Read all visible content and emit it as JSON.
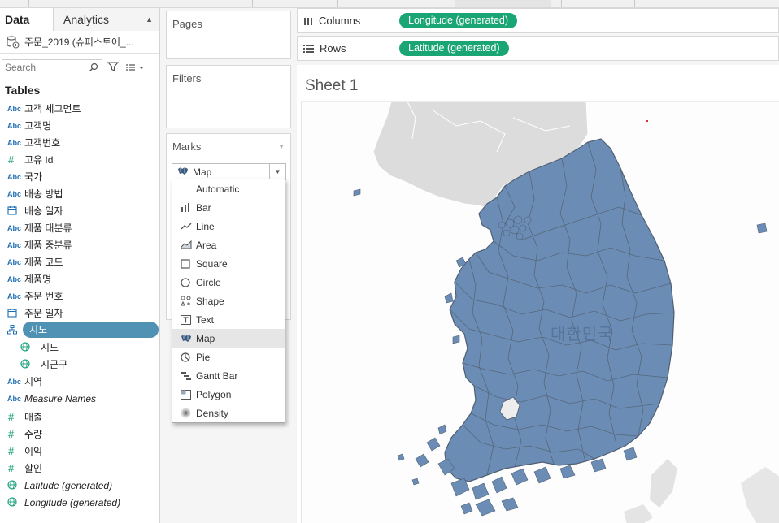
{
  "data_pane": {
    "tab_data": "Data",
    "tab_analytics": "Analytics",
    "datasource_name": "주문_2019 (슈퍼스토어_...",
    "search_placeholder": "Search",
    "tables_header": "Tables",
    "fields": [
      {
        "type": "abc",
        "label": "고객 세그먼트"
      },
      {
        "type": "abc",
        "label": "고객명"
      },
      {
        "type": "abc",
        "label": "고객번호"
      },
      {
        "type": "hash",
        "label": "고유 Id"
      },
      {
        "type": "abc",
        "label": "국가"
      },
      {
        "type": "abc",
        "label": "배송 방법"
      },
      {
        "type": "calendar",
        "label": "배송 일자"
      },
      {
        "type": "abc",
        "label": "제품 대분류"
      },
      {
        "type": "abc",
        "label": "제품 중분류"
      },
      {
        "type": "abc",
        "label": "제품 코드"
      },
      {
        "type": "abc",
        "label": "제품명"
      },
      {
        "type": "abc",
        "label": "주문 번호"
      },
      {
        "type": "calendar",
        "label": "주문 일자"
      },
      {
        "type": "hierarchy",
        "label": "지도"
      },
      {
        "type": "geo",
        "label": "시도"
      },
      {
        "type": "geo",
        "label": "시군구"
      },
      {
        "type": "abc",
        "label": "지역"
      },
      {
        "type": "abc",
        "label": "Measure Names"
      }
    ],
    "measures": [
      {
        "type": "hash",
        "label": "매출"
      },
      {
        "type": "hash",
        "label": "수량"
      },
      {
        "type": "hash",
        "label": "이익"
      },
      {
        "type": "hash",
        "label": "할인"
      },
      {
        "type": "geo",
        "label": "Latitude (generated)"
      },
      {
        "type": "geo",
        "label": "Longitude (generated)"
      }
    ]
  },
  "cards": {
    "pages": "Pages",
    "filters": "Filters",
    "marks": "Marks",
    "mark_type": "Map"
  },
  "mark_menu": [
    {
      "icon": "none",
      "label": "Automatic"
    },
    {
      "icon": "bar-icon",
      "label": "Bar"
    },
    {
      "icon": "line-icon",
      "label": "Line"
    },
    {
      "icon": "area-icon",
      "label": "Area"
    },
    {
      "icon": "square-icon",
      "label": "Square"
    },
    {
      "icon": "circle-icon",
      "label": "Circle"
    },
    {
      "icon": "shape-icon",
      "label": "Shape"
    },
    {
      "icon": "text-icon",
      "label": "Text"
    },
    {
      "icon": "map-icon",
      "label": "Map"
    },
    {
      "icon": "pie-icon",
      "label": "Pie"
    },
    {
      "icon": "gantt-bar-icon",
      "label": "Gantt Bar"
    },
    {
      "icon": "polygon-icon",
      "label": "Polygon"
    },
    {
      "icon": "density-icon",
      "label": "Density"
    }
  ],
  "selected_mark": "Map",
  "shelves": {
    "columns_label": "Columns",
    "columns_pill": "Longitude (generated)",
    "rows_label": "Rows",
    "rows_pill": "Latitude (generated)"
  },
  "sheet": {
    "title": "Sheet 1",
    "country_label": "대한민국"
  },
  "colors": {
    "pill_green": "#1aa575",
    "map_fill": "#6b8db5",
    "selected_field": "#4f92b4"
  }
}
